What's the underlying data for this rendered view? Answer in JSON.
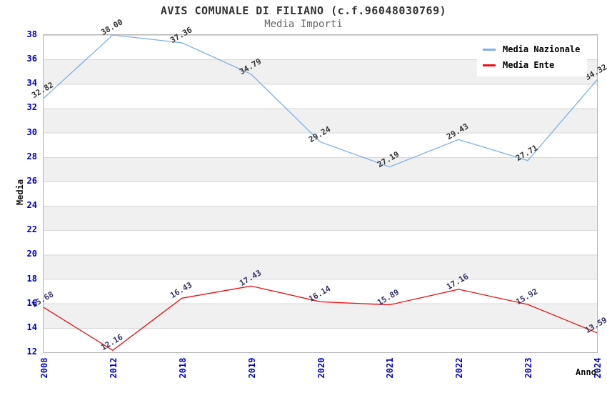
{
  "title": "AVIS COMUNALE DI FILIANO (c.f.96048030769)",
  "subtitle": "Media Importi",
  "axes": {
    "y_title": "Media",
    "x_title": "Anno",
    "y_ticks": [
      "38",
      "36",
      "34",
      "32",
      "30",
      "28",
      "26",
      "24",
      "22",
      "20",
      "18",
      "16",
      "14",
      "12"
    ],
    "x_ticks": [
      "2008",
      "2012",
      "2018",
      "2019",
      "2020",
      "2021",
      "2022",
      "2023",
      "2024"
    ],
    "tick_color": "#0000cc"
  },
  "legend": {
    "items": [
      {
        "label": "Media Nazionale",
        "color": "#7cb0e8"
      },
      {
        "label": "Media Ente",
        "color": "#ee1111"
      }
    ]
  },
  "chart_data": {
    "type": "line",
    "title": "AVIS COMUNALE DI FILIANO (c.f.96048030769)",
    "subtitle": "Media Importi",
    "xlabel": "Anno",
    "ylabel": "Media",
    "ylim": [
      12,
      38
    ],
    "y_tick_step": 2,
    "grid": "horizontal-bands",
    "legend_position": "top-right",
    "categories": [
      "2008",
      "2012",
      "2018",
      "2019",
      "2020",
      "2021",
      "2022",
      "2023",
      "2024"
    ],
    "series": [
      {
        "name": "Media Nazionale",
        "color": "#7cb0e8",
        "label_color": "#333333",
        "values": [
          32.82,
          38.0,
          37.36,
          34.79,
          29.24,
          27.19,
          29.43,
          27.71,
          34.32
        ],
        "labels": [
          "32.82",
          "38.00",
          "37.36",
          "34.79",
          "29.24",
          "27.19",
          "29.43",
          "27.71",
          "34.32"
        ]
      },
      {
        "name": "Media Ente",
        "color": "#ee1111",
        "label_color": "#333366",
        "values": [
          15.68,
          12.16,
          16.43,
          17.43,
          16.14,
          15.89,
          17.16,
          15.92,
          13.59
        ],
        "labels": [
          "15.68",
          "12.16",
          "16.43",
          "17.43",
          "16.14",
          "15.89",
          "17.16",
          "15.92",
          "13.59"
        ]
      }
    ]
  }
}
